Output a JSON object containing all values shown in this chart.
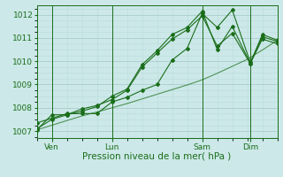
{
  "xlabel": "Pression niveau de la mer( hPa )",
  "bg_color": "#cce8e8",
  "grid_color_major": "#aacccc",
  "grid_color_minor": "#bbdddd",
  "line_color": "#1a6e1a",
  "ylim": [
    1006.7,
    1012.4
  ],
  "xlim": [
    0,
    240
  ],
  "yticks": [
    1007,
    1008,
    1009,
    1010,
    1011,
    1012
  ],
  "x_ticks_major": [
    15,
    75,
    165,
    213
  ],
  "x_tick_labels": [
    "Ven",
    "Lun",
    "Sam",
    "Dim"
  ],
  "trend_x": [
    0,
    15,
    30,
    45,
    60,
    75,
    90,
    105,
    120,
    135,
    150,
    165,
    180,
    195,
    210,
    225,
    240
  ],
  "trend_y": [
    1007.05,
    1007.25,
    1007.45,
    1007.65,
    1007.82,
    1008.0,
    1008.18,
    1008.38,
    1008.58,
    1008.78,
    1008.98,
    1009.2,
    1009.48,
    1009.78,
    1010.08,
    1010.48,
    1010.9
  ],
  "s2_x": [
    0,
    15,
    30,
    45,
    60,
    75,
    90,
    105,
    120,
    135,
    150,
    165,
    180,
    195,
    213,
    225,
    240
  ],
  "s2_y": [
    1007.35,
    1007.55,
    1007.75,
    1007.75,
    1007.75,
    1008.25,
    1008.45,
    1008.75,
    1009.0,
    1010.05,
    1010.55,
    1012.05,
    1011.45,
    1012.2,
    1009.95,
    1011.05,
    1010.85
  ],
  "s3_x": [
    0,
    15,
    30,
    45,
    60,
    75,
    90,
    105,
    120,
    135,
    150,
    165,
    180,
    195,
    213,
    225,
    240
  ],
  "s3_y": [
    1007.1,
    1007.5,
    1007.7,
    1007.85,
    1008.05,
    1008.5,
    1008.8,
    1009.85,
    1010.45,
    1011.15,
    1011.45,
    1012.15,
    1010.5,
    1011.5,
    1009.9,
    1011.15,
    1010.9
  ],
  "s4_x": [
    0,
    15,
    30,
    45,
    60,
    75,
    90,
    105,
    120,
    135,
    150,
    165,
    180,
    195,
    213,
    225,
    240
  ],
  "s4_y": [
    1007.05,
    1007.7,
    1007.7,
    1007.95,
    1008.1,
    1008.35,
    1008.75,
    1009.75,
    1010.35,
    1010.95,
    1011.35,
    1011.95,
    1010.65,
    1011.2,
    1009.9,
    1010.95,
    1010.75
  ]
}
